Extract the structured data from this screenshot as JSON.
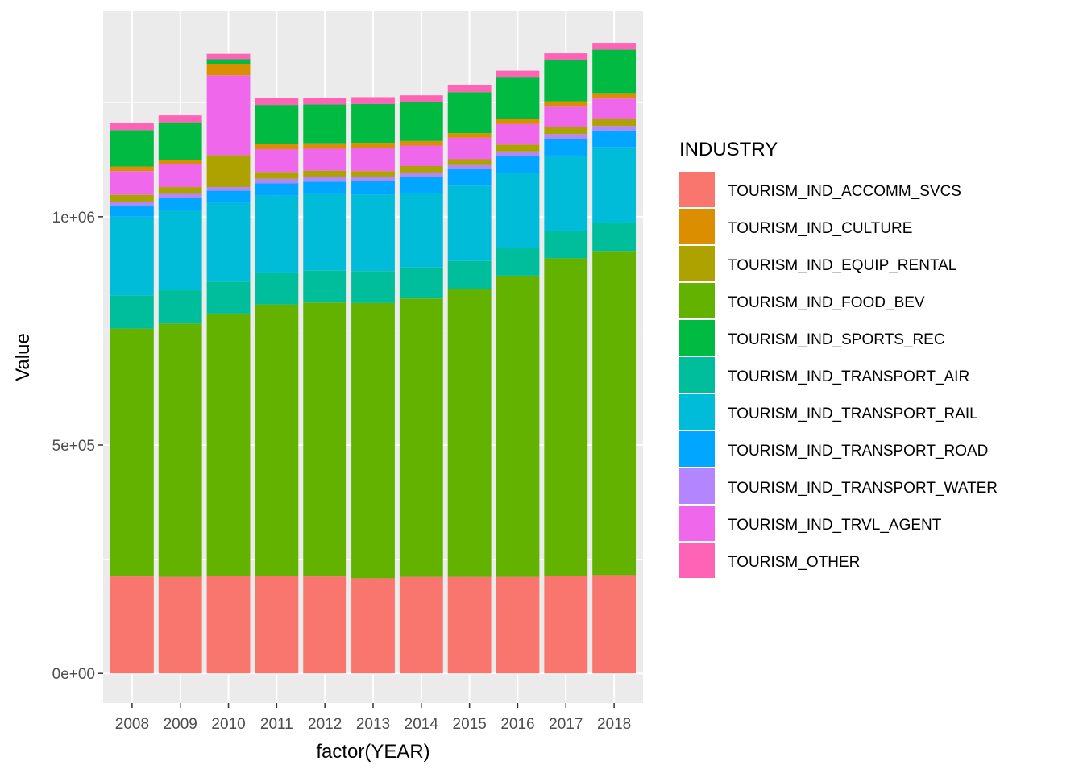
{
  "chart_data": {
    "type": "bar",
    "stacked": true,
    "title": "",
    "xlabel": "factor(YEAR)",
    "ylabel": "Value",
    "ylim": [
      -65000,
      1450000
    ],
    "yticks": [
      0,
      500000,
      1000000
    ],
    "ytick_labels": [
      "0e+00",
      "5e+05",
      "1e+06"
    ],
    "categories": [
      "2008",
      "2009",
      "2010",
      "2011",
      "2012",
      "2013",
      "2014",
      "2015",
      "2016",
      "2017",
      "2018"
    ],
    "legend": {
      "title": "INDUSTRY",
      "position": "right"
    },
    "grid": true,
    "series": [
      {
        "name": "TOURISM_IND_ACCOMM_SVCS",
        "color": "#F8766D",
        "values": [
          212000,
          211000,
          213000,
          213000,
          212000,
          208000,
          211000,
          211000,
          211000,
          214000,
          215000
        ]
      },
      {
        "name": "TOURISM_IND_FOOD_BEV",
        "color": "#64B200",
        "values": [
          543000,
          555000,
          575000,
          595000,
          600000,
          603000,
          610000,
          630000,
          660000,
          695000,
          710000
        ]
      },
      {
        "name": "TOURISM_IND_TRANSPORT_AIR",
        "color": "#00BD9C",
        "values": [
          73000,
          73000,
          70000,
          70000,
          70000,
          70000,
          68000,
          62000,
          60000,
          60000,
          62000
        ]
      },
      {
        "name": "TOURISM_IND_TRANSPORT_RAIL",
        "color": "#00BCD8",
        "values": [
          172000,
          176000,
          172000,
          168000,
          168000,
          168000,
          163000,
          165000,
          165000,
          165000,
          165000
        ]
      },
      {
        "name": "TOURISM_IND_TRANSPORT_ROAD",
        "color": "#00A6FF",
        "values": [
          25000,
          27000,
          27000,
          27000,
          27000,
          30000,
          35000,
          37000,
          37000,
          37000,
          37000
        ]
      },
      {
        "name": "TOURISM_IND_TRANSPORT_WATER",
        "color": "#B385FF",
        "values": [
          8000,
          8000,
          8000,
          10000,
          10000,
          8000,
          10000,
          8000,
          10000,
          10000,
          10000
        ]
      },
      {
        "name": "TOURISM_IND_EQUIP_RENTAL",
        "color": "#AEA200",
        "values": [
          15000,
          15000,
          70000,
          15000,
          14000,
          13000,
          14000,
          13000,
          15000,
          15000,
          15000
        ]
      },
      {
        "name": "TOURISM_IND_TRVL_AGENT",
        "color": "#EF67EB",
        "values": [
          52000,
          50000,
          175000,
          50000,
          48000,
          50000,
          45000,
          47000,
          45000,
          45000,
          45000
        ]
      },
      {
        "name": "TOURISM_IND_CULTURE",
        "color": "#DB8E00",
        "values": [
          10000,
          10000,
          25000,
          12000,
          12000,
          12000,
          10000,
          10000,
          12000,
          12000,
          12000
        ]
      },
      {
        "name": "TOURISM_IND_SPORTS_REC",
        "color": "#00BA42",
        "values": [
          80000,
          82000,
          10000,
          85000,
          85000,
          85000,
          85000,
          90000,
          90000,
          90000,
          95000
        ]
      },
      {
        "name": "TOURISM_OTHER",
        "color": "#FF63B6",
        "values": [
          15000,
          15000,
          12000,
          15000,
          15000,
          15000,
          15000,
          15000,
          15000,
          15000,
          15000
        ]
      }
    ]
  }
}
